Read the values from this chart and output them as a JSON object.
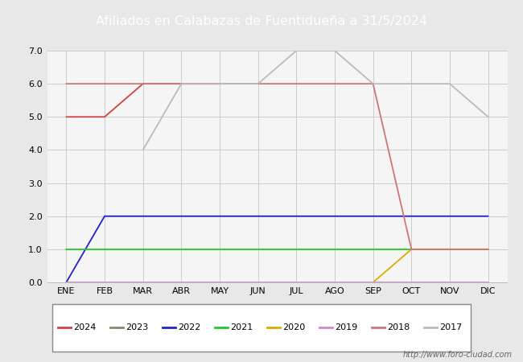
{
  "title": "Afiliados en Calabazas de Fuentidueña a 31/5/2024",
  "title_bg_color": "#4472c4",
  "title_text_color": "#ffffff",
  "ylim": [
    0.0,
    7.0
  ],
  "yticks": [
    0.0,
    1.0,
    2.0,
    3.0,
    4.0,
    5.0,
    6.0,
    7.0
  ],
  "months": [
    1,
    2,
    3,
    4,
    5,
    6,
    7,
    8,
    9,
    10,
    11,
    12
  ],
  "month_labels": [
    "ENE",
    "FEB",
    "MAR",
    "ABR",
    "MAY",
    "JUN",
    "JUL",
    "AGO",
    "SEP",
    "OCT",
    "NOV",
    "DIC"
  ],
  "series": {
    "2024": {
      "color": "#cc4444",
      "data": [
        [
          1,
          5
        ],
        [
          2,
          5
        ],
        [
          3,
          6
        ],
        [
          4,
          6
        ],
        [
          5,
          6
        ]
      ]
    },
    "2023": {
      "color": "#888870",
      "data": []
    },
    "2022": {
      "color": "#2222cc",
      "data": [
        [
          1,
          0
        ],
        [
          2,
          2
        ],
        [
          3,
          2
        ],
        [
          4,
          2
        ],
        [
          5,
          2
        ],
        [
          6,
          2
        ],
        [
          7,
          2
        ],
        [
          8,
          2
        ],
        [
          9,
          2
        ],
        [
          10,
          2
        ],
        [
          11,
          2
        ],
        [
          12,
          2
        ]
      ]
    },
    "2021": {
      "color": "#22cc22",
      "data": [
        [
          1,
          1
        ],
        [
          2,
          1
        ],
        [
          3,
          1
        ],
        [
          4,
          1
        ],
        [
          5,
          1
        ],
        [
          6,
          1
        ],
        [
          7,
          1
        ],
        [
          8,
          1
        ],
        [
          9,
          1
        ],
        [
          10,
          1
        ],
        [
          11,
          1
        ],
        [
          12,
          1
        ]
      ]
    },
    "2020": {
      "color": "#ddaa00",
      "data": [
        [
          9,
          0
        ],
        [
          10,
          1
        ],
        [
          11,
          1
        ],
        [
          12,
          1
        ]
      ]
    },
    "2019": {
      "color": "#cc88cc",
      "data": [
        [
          1,
          0
        ],
        [
          2,
          0
        ],
        [
          3,
          0
        ],
        [
          4,
          0
        ],
        [
          5,
          0
        ],
        [
          6,
          0
        ],
        [
          7,
          0
        ],
        [
          8,
          0
        ],
        [
          9,
          0
        ],
        [
          10,
          0
        ],
        [
          11,
          0
        ],
        [
          12,
          0
        ]
      ]
    },
    "2018": {
      "color": "#cc7777",
      "data": [
        [
          1,
          6
        ],
        [
          2,
          6
        ],
        [
          3,
          6
        ],
        [
          4,
          6
        ],
        [
          5,
          6
        ],
        [
          6,
          6
        ],
        [
          7,
          6
        ],
        [
          8,
          6
        ],
        [
          9,
          6
        ],
        [
          10,
          1
        ],
        [
          11,
          1
        ],
        [
          12,
          1
        ]
      ]
    },
    "2017": {
      "color": "#bbbbbb",
      "data": [
        [
          3,
          4
        ],
        [
          4,
          6
        ],
        [
          5,
          6
        ],
        [
          6,
          6
        ],
        [
          7,
          7
        ],
        [
          8,
          7
        ],
        [
          9,
          6
        ],
        [
          10,
          6
        ],
        [
          11,
          6
        ],
        [
          12,
          5
        ]
      ]
    }
  },
  "watermark": "http://www.foro-ciudad.com",
  "fig_bg_color": "#e8e8e8",
  "plot_bg_color": "#f5f5f5",
  "grid_color": "#cccccc"
}
